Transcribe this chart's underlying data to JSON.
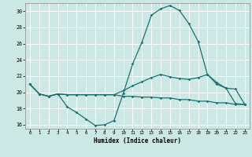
{
  "xlabel": "Humidex (Indice chaleur)",
  "background_color": "#cce8e4",
  "grid_color": "#ffffff",
  "line_color": "#1a7070",
  "xlim": [
    -0.5,
    23.5
  ],
  "ylim": [
    15.5,
    31.0
  ],
  "yticks": [
    16,
    18,
    20,
    22,
    24,
    26,
    28,
    30
  ],
  "xticks": [
    0,
    1,
    2,
    3,
    4,
    5,
    6,
    7,
    8,
    9,
    10,
    11,
    12,
    13,
    14,
    15,
    16,
    17,
    18,
    19,
    20,
    21,
    22,
    23
  ],
  "curve1_x": [
    0,
    1,
    2,
    3,
    4,
    5,
    6,
    7,
    8,
    9,
    10,
    11,
    12,
    13,
    14,
    15,
    16,
    17,
    18,
    19,
    20,
    21,
    22,
    23
  ],
  "curve1_y": [
    21.0,
    19.8,
    19.5,
    19.8,
    18.2,
    17.5,
    16.7,
    15.9,
    16.0,
    16.5,
    19.9,
    23.5,
    26.2,
    29.5,
    30.3,
    30.7,
    30.1,
    28.5,
    26.3,
    22.2,
    21.0,
    20.5,
    18.6,
    18.5
  ],
  "curve2_x": [
    0,
    1,
    2,
    3,
    4,
    5,
    6,
    7,
    8,
    9,
    10,
    11,
    12,
    13,
    14,
    15,
    16,
    17,
    18,
    19,
    20,
    21,
    22,
    23
  ],
  "curve2_y": [
    21.0,
    19.8,
    19.5,
    19.8,
    19.7,
    19.7,
    19.7,
    19.7,
    19.7,
    19.7,
    20.2,
    20.8,
    21.3,
    21.8,
    22.2,
    21.9,
    21.7,
    21.6,
    21.8,
    22.2,
    21.2,
    20.5,
    20.4,
    18.5
  ],
  "curve3_x": [
    0,
    1,
    2,
    3,
    4,
    5,
    6,
    7,
    8,
    9,
    10,
    11,
    12,
    13,
    14,
    15,
    16,
    17,
    18,
    19,
    20,
    21,
    22,
    23
  ],
  "curve3_y": [
    21.0,
    19.8,
    19.5,
    19.8,
    19.7,
    19.7,
    19.7,
    19.7,
    19.7,
    19.7,
    19.5,
    19.5,
    19.4,
    19.4,
    19.3,
    19.3,
    19.1,
    19.1,
    18.9,
    18.9,
    18.7,
    18.7,
    18.5,
    18.5
  ]
}
